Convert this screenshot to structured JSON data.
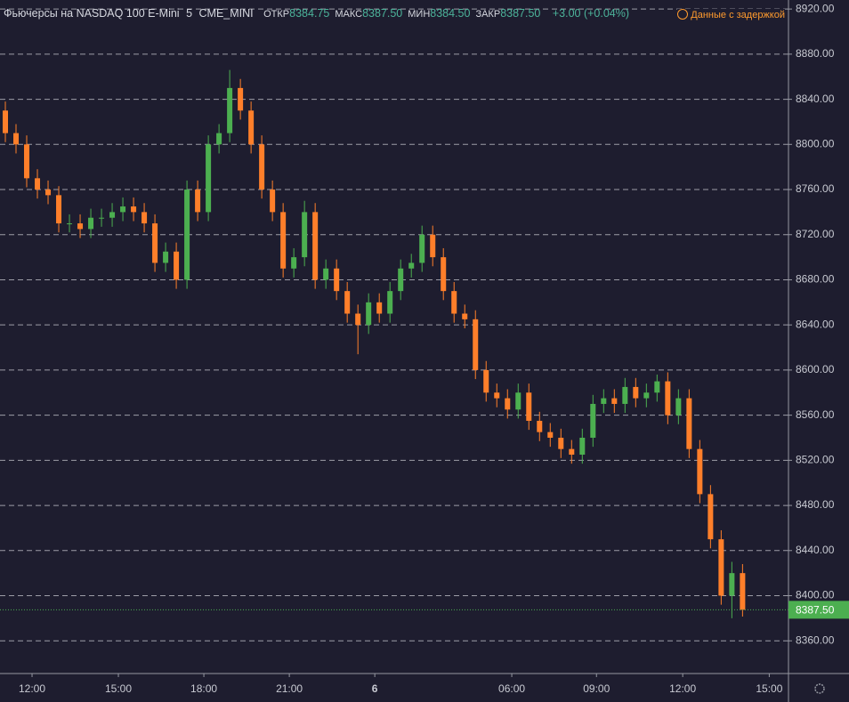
{
  "chart_data": {
    "type": "candlestick",
    "title": "Фьючерсы на NASDAQ 100 E-Mini",
    "interval": "5",
    "exchange": "CME_MINI",
    "ohlc_labels": [
      {
        "name": "ОТКР",
        "value": "8384.75"
      },
      {
        "name": "МАКС",
        "value": "8387.50"
      },
      {
        "name": "МИН",
        "value": "8384.50"
      },
      {
        "name": "ЗАКР",
        "value": "8387.50"
      }
    ],
    "change": "+3.00 (+0.04%)",
    "delay_note": "Данные с задержкой",
    "up_color": "#4caf50",
    "down_color": "#ff7f2a",
    "open": [
      8830,
      8810,
      8800,
      8770,
      8760,
      8755,
      8730,
      8730,
      8725,
      8735,
      8735,
      8740,
      8745,
      8740,
      8730,
      8695,
      8705,
      8680,
      8760,
      8740,
      8800,
      8810,
      8850,
      8830,
      8800,
      8760,
      8740,
      8690,
      8700,
      8740,
      8680,
      8690,
      8670,
      8650,
      8640,
      8660,
      8650,
      8670,
      8690,
      8695,
      8720,
      8700,
      8670,
      8650,
      8645,
      8600,
      8580,
      8575,
      8565,
      8580,
      8555,
      8545,
      8540,
      8530,
      8525,
      8540,
      8570,
      8575,
      8570,
      8585,
      8575,
      8580,
      8590,
      8560,
      8575,
      8530,
      8490,
      8450,
      8400,
      8420
    ],
    "high": [
      8838,
      8818,
      8808,
      8778,
      8768,
      8763,
      8738,
      8738,
      8743,
      8743,
      8748,
      8753,
      8753,
      8748,
      8738,
      8713,
      8713,
      8768,
      8768,
      8808,
      8818,
      8866,
      8858,
      8838,
      8808,
      8768,
      8748,
      8708,
      8750,
      8748,
      8698,
      8698,
      8678,
      8658,
      8668,
      8668,
      8678,
      8698,
      8703,
      8728,
      8728,
      8708,
      8678,
      8658,
      8653,
      8608,
      8588,
      8583,
      8588,
      8588,
      8563,
      8553,
      8548,
      8538,
      8548,
      8578,
      8583,
      8583,
      8593,
      8593,
      8588,
      8596,
      8598,
      8583,
      8583,
      8538,
      8498,
      8458,
      8430,
      8428
    ],
    "low": [
      8802,
      8792,
      8762,
      8752,
      8747,
      8722,
      8722,
      8717,
      8717,
      8727,
      8727,
      8732,
      8732,
      8722,
      8687,
      8687,
      8672,
      8672,
      8732,
      8732,
      8792,
      8802,
      8822,
      8792,
      8752,
      8732,
      8682,
      8682,
      8692,
      8672,
      8672,
      8662,
      8642,
      8614,
      8632,
      8642,
      8642,
      8662,
      8682,
      8687,
      8692,
      8662,
      8642,
      8637,
      8592,
      8572,
      8567,
      8557,
      8557,
      8547,
      8537,
      8532,
      8522,
      8517,
      8517,
      8532,
      8562,
      8562,
      8562,
      8567,
      8567,
      8572,
      8552,
      8552,
      8522,
      8482,
      8442,
      8392,
      8380,
      8381.5
    ],
    "close": [
      8810,
      8800,
      8770,
      8760,
      8755,
      8730,
      8730,
      8725,
      8735,
      8735,
      8740,
      8745,
      8740,
      8730,
      8695,
      8705,
      8680,
      8760,
      8740,
      8800,
      8810,
      8850,
      8830,
      8800,
      8760,
      8740,
      8690,
      8700,
      8740,
      8680,
      8690,
      8670,
      8650,
      8640,
      8660,
      8650,
      8670,
      8690,
      8695,
      8720,
      8700,
      8670,
      8650,
      8645,
      8600,
      8580,
      8575,
      8565,
      8580,
      8555,
      8545,
      8540,
      8530,
      8525,
      8540,
      8570,
      8575,
      8570,
      8585,
      8575,
      8580,
      8590,
      8560,
      8575,
      8530,
      8490,
      8450,
      8400,
      8420,
      8387.5
    ],
    "xlim": [
      0,
      73.8
    ],
    "xticks": [
      {
        "value": 3.0,
        "label": "12:00"
      },
      {
        "value": 11.08,
        "label": "15:00"
      },
      {
        "value": 19.08,
        "label": "18:00"
      },
      {
        "value": 27.08,
        "label": "21:00"
      },
      {
        "value": 35.08,
        "label": "6"
      },
      {
        "value": 47.9,
        "label": "06:00"
      },
      {
        "value": 55.83,
        "label": "09:00"
      },
      {
        "value": 63.9,
        "label": "12:00"
      },
      {
        "value": 72.0,
        "label": "15:00"
      }
    ],
    "ylim": [
      8331,
      8928
    ],
    "yticks": [
      {
        "value": 8360,
        "label": "8360.00"
      },
      {
        "value": 8400,
        "label": "8400.00"
      },
      {
        "value": 8440,
        "label": "8440.00"
      },
      {
        "value": 8480,
        "label": "8480.00"
      },
      {
        "value": 8520,
        "label": "8520.00"
      },
      {
        "value": 8560,
        "label": "8560.00"
      },
      {
        "value": 8600,
        "label": "8600.00"
      },
      {
        "value": 8640,
        "label": "8640.00"
      },
      {
        "value": 8680,
        "label": "8680.00"
      },
      {
        "value": 8720,
        "label": "8720.00"
      },
      {
        "value": 8760,
        "label": "8760.00"
      },
      {
        "value": 8800,
        "label": "8800.00"
      },
      {
        "value": 8840,
        "label": "8840.00"
      },
      {
        "value": 8880,
        "label": "8880.00"
      },
      {
        "value": 8920,
        "label": "8920.00"
      }
    ],
    "last_price": {
      "value": 8387.5,
      "label": "8387.50"
    },
    "grid": true
  }
}
